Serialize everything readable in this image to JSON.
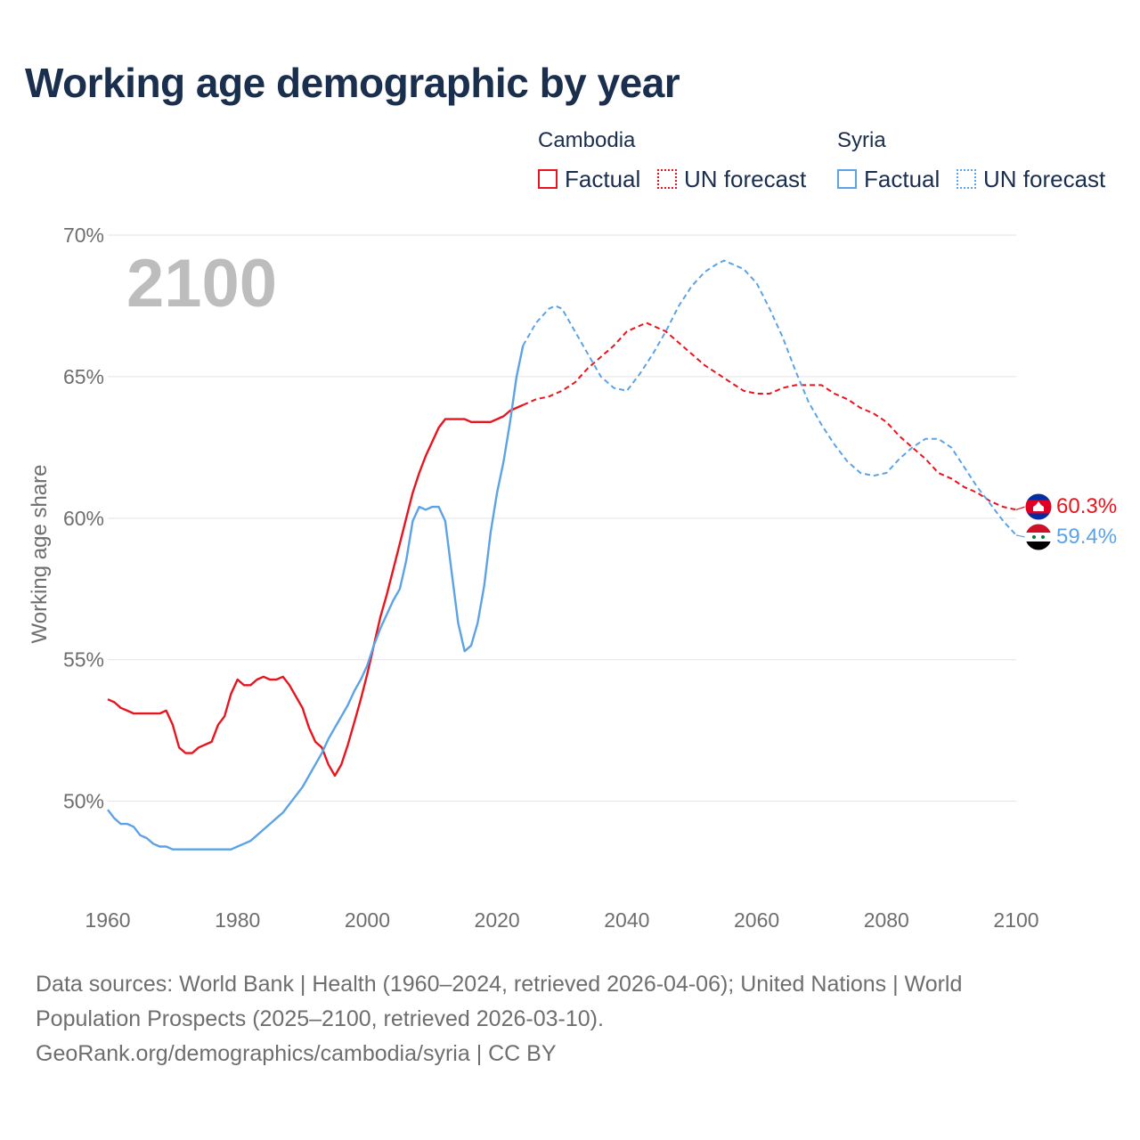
{
  "title": "Working age demographic by year",
  "legend": {
    "groups": [
      {
        "country": "Cambodia",
        "color": "#e8141e",
        "factual_label": "Factual",
        "forecast_label": "UN forecast"
      },
      {
        "country": "Syria",
        "color": "#5ba3e6",
        "factual_label": "Factual",
        "forecast_label": "UN forecast"
      }
    ]
  },
  "year_overlay": "2100",
  "footer": {
    "line1": "Data sources: World Bank | Health (1960–2024, retrieved 2026-04-06); United Nations | World",
    "line2": "Population Prospects (2025–2100, retrieved 2026-03-10).",
    "line3": "GeoRank.org/demographics/cambodia/syria | CC BY"
  },
  "chart_data": {
    "type": "line",
    "title": "Working age demographic by year",
    "xlabel": "",
    "ylabel": "Working age share",
    "xlim": [
      1960,
      2100
    ],
    "ylim": [
      47,
      70
    ],
    "x_ticks": [
      1960,
      1980,
      2000,
      2020,
      2040,
      2060,
      2080,
      2100
    ],
    "x_tick_labels": [
      "1960",
      "1980",
      "2000",
      "2020",
      "2040",
      "2060",
      "2080",
      "2100"
    ],
    "y_ticks": [
      50,
      55,
      60,
      65,
      70
    ],
    "y_tick_labels": [
      "50%",
      "55%",
      "60%",
      "65%",
      "70%"
    ],
    "grid": true,
    "series": [
      {
        "name": "Cambodia",
        "color": "#e8141e",
        "end_label": "60.3%",
        "flag": "cambodia-flag",
        "factual": {
          "x": [
            1960,
            1961,
            1962,
            1963,
            1964,
            1965,
            1966,
            1967,
            1968,
            1969,
            1970,
            1971,
            1972,
            1973,
            1974,
            1975,
            1976,
            1977,
            1978,
            1979,
            1980,
            1981,
            1982,
            1983,
            1984,
            1985,
            1986,
            1987,
            1988,
            1989,
            1990,
            1991,
            1992,
            1993,
            1994,
            1995,
            1996,
            1997,
            1998,
            1999,
            2000,
            2001,
            2002,
            2003,
            2004,
            2005,
            2006,
            2007,
            2008,
            2009,
            2010,
            2011,
            2012,
            2013,
            2014,
            2015,
            2016,
            2017,
            2018,
            2019,
            2020,
            2021,
            2022,
            2023,
            2024
          ],
          "y": [
            53.6,
            53.5,
            53.3,
            53.2,
            53.1,
            53.1,
            53.1,
            53.1,
            53.1,
            53.2,
            52.7,
            51.9,
            51.7,
            51.7,
            51.9,
            52.0,
            52.1,
            52.7,
            53.0,
            53.8,
            54.3,
            54.1,
            54.1,
            54.3,
            54.4,
            54.3,
            54.3,
            54.4,
            54.1,
            53.7,
            53.3,
            52.6,
            52.1,
            51.9,
            51.3,
            50.9,
            51.3,
            52.0,
            52.8,
            53.6,
            54.5,
            55.5,
            56.5,
            57.3,
            58.2,
            59.1,
            60.0,
            60.9,
            61.6,
            62.2,
            62.7,
            63.2,
            63.5,
            63.5,
            63.5,
            63.5,
            63.4,
            63.4,
            63.4,
            63.4,
            63.5,
            63.6,
            63.8,
            63.9,
            64.0
          ]
        },
        "forecast": {
          "x": [
            2024,
            2026,
            2028,
            2030,
            2032,
            2034,
            2036,
            2038,
            2040,
            2042,
            2043,
            2044,
            2046,
            2048,
            2050,
            2052,
            2054,
            2056,
            2058,
            2060,
            2062,
            2064,
            2066,
            2068,
            2070,
            2072,
            2074,
            2076,
            2078,
            2080,
            2082,
            2084,
            2086,
            2088,
            2090,
            2092,
            2094,
            2096,
            2098,
            2100
          ],
          "y": [
            64.0,
            64.2,
            64.3,
            64.5,
            64.8,
            65.3,
            65.7,
            66.1,
            66.6,
            66.8,
            66.9,
            66.8,
            66.6,
            66.2,
            65.8,
            65.4,
            65.1,
            64.8,
            64.5,
            64.4,
            64.4,
            64.6,
            64.7,
            64.7,
            64.7,
            64.4,
            64.2,
            63.9,
            63.7,
            63.4,
            62.9,
            62.5,
            62.1,
            61.6,
            61.4,
            61.1,
            60.9,
            60.6,
            60.4,
            60.3
          ]
        }
      },
      {
        "name": "Syria",
        "color": "#5ba3e6",
        "end_label": "59.4%",
        "flag": "syria-flag",
        "factual": {
          "x": [
            1960,
            1961,
            1962,
            1963,
            1964,
            1965,
            1966,
            1967,
            1968,
            1969,
            1970,
            1971,
            1972,
            1973,
            1974,
            1975,
            1976,
            1977,
            1978,
            1979,
            1980,
            1981,
            1982,
            1983,
            1984,
            1985,
            1986,
            1987,
            1988,
            1989,
            1990,
            1991,
            1992,
            1993,
            1994,
            1995,
            1996,
            1997,
            1998,
            1999,
            2000,
            2001,
            2002,
            2003,
            2004,
            2005,
            2006,
            2007,
            2008,
            2009,
            2010,
            2011,
            2012,
            2013,
            2014,
            2015,
            2016,
            2017,
            2018,
            2019,
            2020,
            2021,
            2022,
            2023,
            2024
          ],
          "y": [
            49.7,
            49.4,
            49.2,
            49.2,
            49.1,
            48.8,
            48.7,
            48.5,
            48.4,
            48.4,
            48.3,
            48.3,
            48.3,
            48.3,
            48.3,
            48.3,
            48.3,
            48.3,
            48.3,
            48.3,
            48.4,
            48.5,
            48.6,
            48.8,
            49.0,
            49.2,
            49.4,
            49.6,
            49.9,
            50.2,
            50.5,
            50.9,
            51.3,
            51.7,
            52.2,
            52.6,
            53.0,
            53.4,
            53.9,
            54.3,
            54.8,
            55.5,
            56.1,
            56.6,
            57.1,
            57.5,
            58.5,
            59.9,
            60.4,
            60.3,
            60.4,
            60.4,
            59.9,
            58.1,
            56.3,
            55.3,
            55.5,
            56.3,
            57.6,
            59.5,
            60.9,
            62.0,
            63.4,
            65.0,
            66.1
          ]
        },
        "forecast": {
          "x": [
            2024,
            2026,
            2028,
            2029,
            2030,
            2032,
            2034,
            2036,
            2038,
            2040,
            2042,
            2044,
            2046,
            2048,
            2050,
            2052,
            2054,
            2055,
            2056,
            2058,
            2060,
            2062,
            2064,
            2066,
            2068,
            2070,
            2072,
            2074,
            2076,
            2078,
            2080,
            2082,
            2084,
            2086,
            2088,
            2090,
            2092,
            2094,
            2096,
            2098,
            2100
          ],
          "y": [
            66.1,
            66.9,
            67.4,
            67.5,
            67.4,
            66.6,
            65.8,
            65.0,
            64.6,
            64.5,
            65.1,
            65.8,
            66.6,
            67.5,
            68.2,
            68.7,
            69.0,
            69.1,
            69.0,
            68.8,
            68.3,
            67.4,
            66.4,
            65.2,
            64.1,
            63.3,
            62.6,
            62.0,
            61.6,
            61.5,
            61.6,
            62.1,
            62.5,
            62.8,
            62.8,
            62.5,
            61.8,
            61.1,
            60.5,
            59.9,
            59.4
          ]
        }
      }
    ]
  }
}
